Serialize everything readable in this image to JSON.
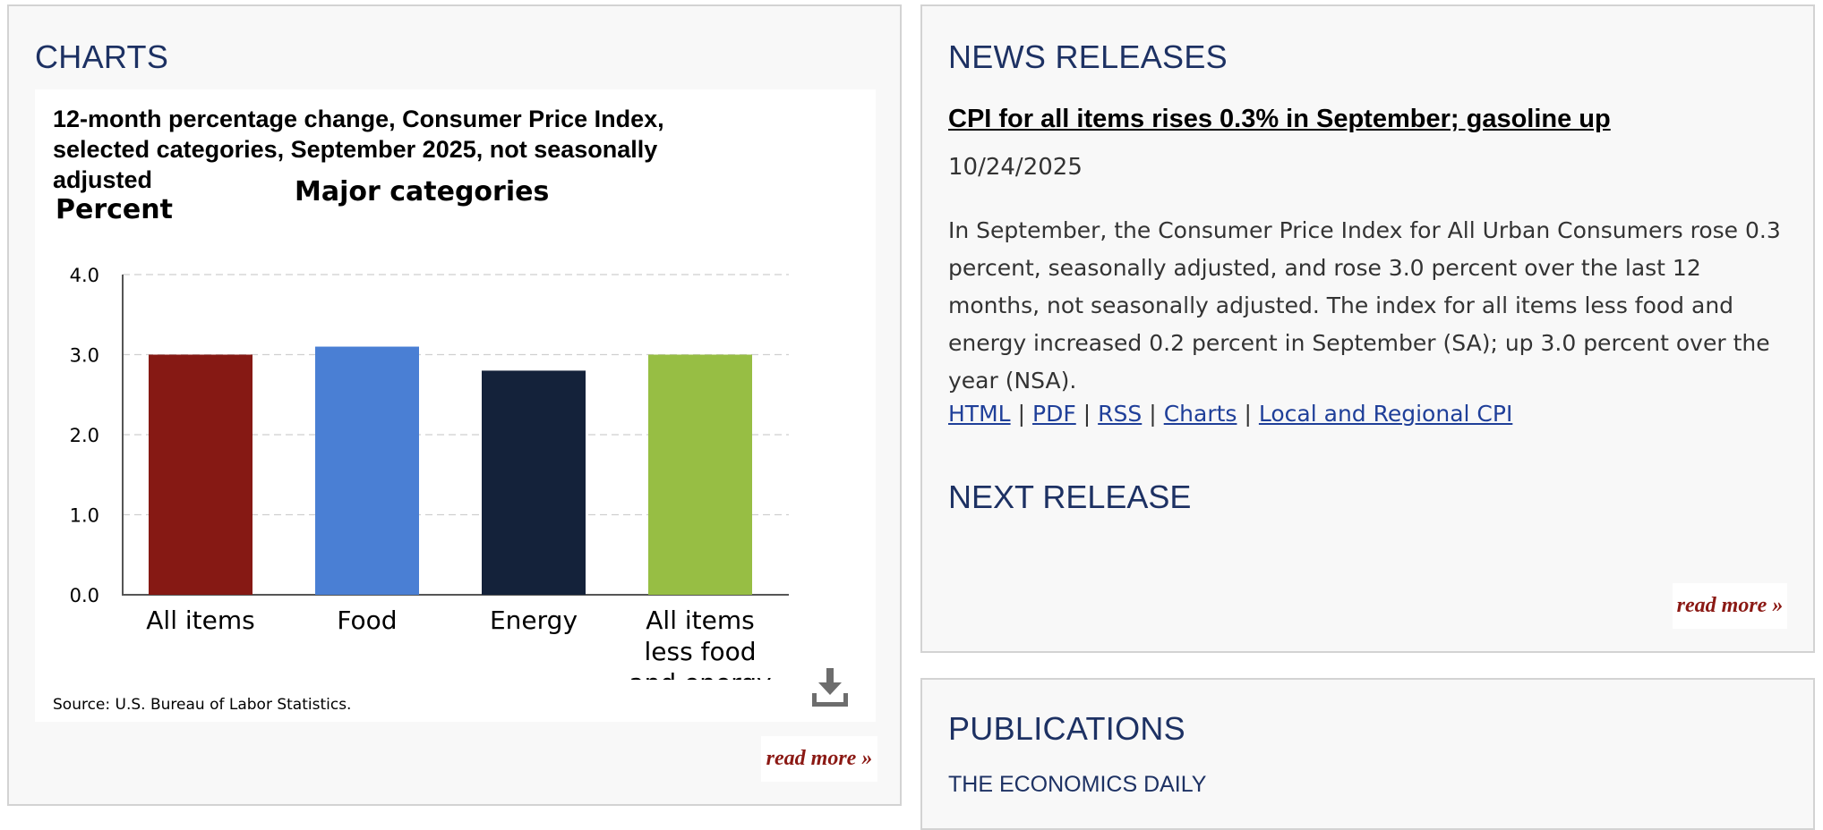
{
  "charts": {
    "title": "CHARTS",
    "chart_title": "12-month percentage change, Consumer Price Index, selected categories, September 2025, not seasonally adjusted",
    "source": "Source: U.S. Bureau of Labor Statistics.",
    "download_icon": "download-icon",
    "read_more": "read more »"
  },
  "chart_data": {
    "type": "bar",
    "title": "12-month percentage change, Consumer Price Index, selected categories, September 2025, not seasonally adjusted",
    "subtitle": "Major categories",
    "ylabel": "Percent",
    "xlabel": "",
    "ylim": [
      0,
      4
    ],
    "yticks": [
      "0.0",
      "1.0",
      "2.0",
      "3.0",
      "4.0"
    ],
    "grid": true,
    "categories": [
      [
        "All items"
      ],
      [
        "Food"
      ],
      [
        "Energy"
      ],
      [
        "All items",
        "less food",
        "and energy"
      ]
    ],
    "values": [
      3.0,
      3.1,
      2.8,
      3.0
    ],
    "colors": [
      "#861914",
      "#4a7fd4",
      "#14223a",
      "#97be44"
    ]
  },
  "news": {
    "title": "NEWS RELEASES",
    "headline": "CPI for all items rises 0.3% in September; gasoline up",
    "date": "10/24/2025",
    "body": "In September, the Consumer Price Index for All Urban Consumers rose 0.3 percent, seasonally adjusted, and rose 3.0 percent over the last 12 months, not seasonally adjusted. The index for all items less food and energy increased 0.2 percent in September (SA); up 3.0 percent over the year (NSA).",
    "links": [
      "HTML",
      "PDF",
      "RSS",
      "Charts",
      "Local and Regional CPI"
    ],
    "separator": "|",
    "next_release_title": "NEXT RELEASE",
    "read_more": "read more »"
  },
  "publications": {
    "title": "PUBLICATIONS",
    "item": "THE ECONOMICS DAILY"
  },
  "colors": {
    "heading": "#1d3163",
    "read_more": "#8b1914",
    "link": "#1f3f99",
    "panel_bg": "#f8f8f8",
    "panel_border": "#d3d3d3"
  }
}
